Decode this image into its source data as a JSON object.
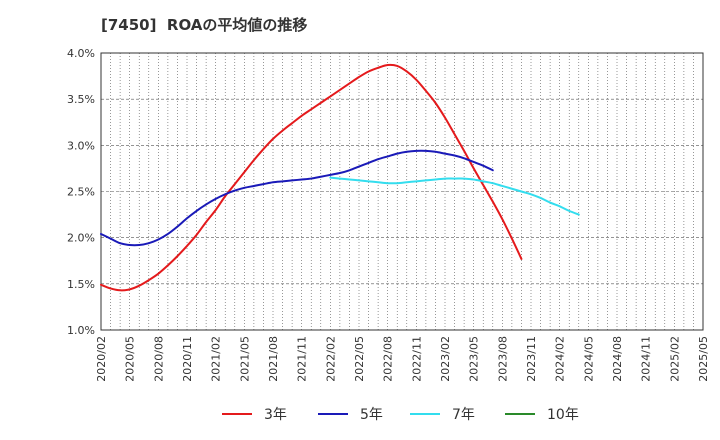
{
  "chart_data": {
    "type": "line",
    "title": "[7450]  ROAの平均値の推移",
    "xlabel": "",
    "ylabel": "",
    "ylim": [
      1.0,
      4.0
    ],
    "y_ticks": [
      "1.0%",
      "1.5%",
      "2.0%",
      "2.5%",
      "3.0%",
      "3.5%",
      "4.0%"
    ],
    "y_tick_values": [
      1.0,
      1.5,
      2.0,
      2.5,
      3.0,
      3.5,
      4.0
    ],
    "x_ticks": [
      "2020/02",
      "2020/05",
      "2020/08",
      "2020/11",
      "2021/02",
      "2021/05",
      "2021/08",
      "2021/11",
      "2022/02",
      "2022/05",
      "2022/08",
      "2022/11",
      "2023/02",
      "2023/05",
      "2023/08",
      "2023/11",
      "2024/02",
      "2024/05",
      "2024/08",
      "2024/11",
      "2025/02",
      "2025/05"
    ],
    "grid": true,
    "legend_position": "bottom",
    "series": [
      {
        "name": "3年",
        "color": "#e41a1c",
        "start_index": 0,
        "values": [
          1.49,
          1.45,
          1.43,
          1.44,
          1.48,
          1.54,
          1.61,
          1.7,
          1.8,
          1.91,
          2.03,
          2.17,
          2.3,
          2.45,
          2.58,
          2.71,
          2.84,
          2.96,
          3.07,
          3.16,
          3.24,
          3.32,
          3.39,
          3.46,
          3.53,
          3.6,
          3.67,
          3.74,
          3.8,
          3.84,
          3.87,
          3.86,
          3.8,
          3.71,
          3.59,
          3.46,
          3.3,
          3.12,
          2.94,
          2.75,
          2.57,
          2.39,
          2.2,
          1.99,
          1.77
        ]
      },
      {
        "name": "5年",
        "color": "#1a1ab8",
        "start_index": 0,
        "values": [
          2.04,
          1.99,
          1.94,
          1.92,
          1.92,
          1.94,
          1.98,
          2.04,
          2.12,
          2.21,
          2.29,
          2.36,
          2.42,
          2.47,
          2.51,
          2.54,
          2.56,
          2.58,
          2.6,
          2.61,
          2.62,
          2.63,
          2.64,
          2.66,
          2.68,
          2.7,
          2.73,
          2.77,
          2.81,
          2.85,
          2.88,
          2.91,
          2.93,
          2.94,
          2.94,
          2.93,
          2.91,
          2.89,
          2.86,
          2.82,
          2.78,
          2.73
        ]
      },
      {
        "name": "7年",
        "color": "#33ddee",
        "start_index": 24,
        "values": [
          2.65,
          2.64,
          2.63,
          2.62,
          2.61,
          2.6,
          2.59,
          2.59,
          2.6,
          2.61,
          2.62,
          2.63,
          2.64,
          2.64,
          2.64,
          2.63,
          2.61,
          2.59,
          2.56,
          2.53,
          2.5,
          2.47,
          2.43,
          2.38,
          2.34,
          2.29,
          2.25
        ]
      },
      {
        "name": "10年",
        "color": "#2a8a2a",
        "start_index": 0,
        "values": []
      }
    ]
  }
}
